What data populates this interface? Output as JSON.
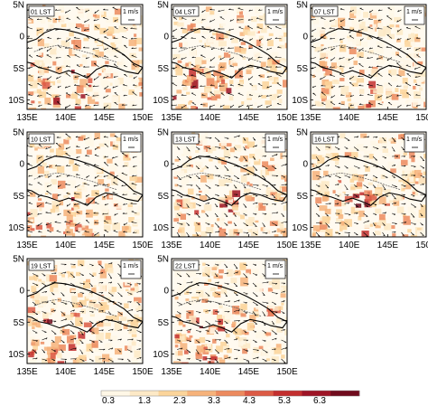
{
  "panels": [
    {
      "label": "01 LST",
      "ref_vector": "1 m/s"
    },
    {
      "label": "04 LST",
      "ref_vector": "1 m/s"
    },
    {
      "label": "07 LST",
      "ref_vector": "1 m/s"
    },
    {
      "label": "10 LST",
      "ref_vector": "1 m/s"
    },
    {
      "label": "13 LST",
      "ref_vector": "1 m/s"
    },
    {
      "label": "16 LST",
      "ref_vector": "1 m/s"
    },
    {
      "label": "19 LST",
      "ref_vector": "1 m/s"
    },
    {
      "label": "22 LST",
      "ref_vector": "1 m/s"
    }
  ],
  "lat_ticks": [
    "5N",
    "0",
    "5S",
    "10S"
  ],
  "lon_ticks": [
    "135E",
    "140E",
    "145E",
    "150E"
  ],
  "colorbar": {
    "labels": [
      "0.3",
      "1.3",
      "2.3",
      "3.3",
      "4.3",
      "5.3",
      "6.3"
    ],
    "colors": [
      "#fff7e6",
      "#fde9c6",
      "#fbd49a",
      "#f6b27a",
      "#ec8a5e",
      "#dc5a45",
      "#c32f2f",
      "#9e1426",
      "#700b1d"
    ]
  }
}
